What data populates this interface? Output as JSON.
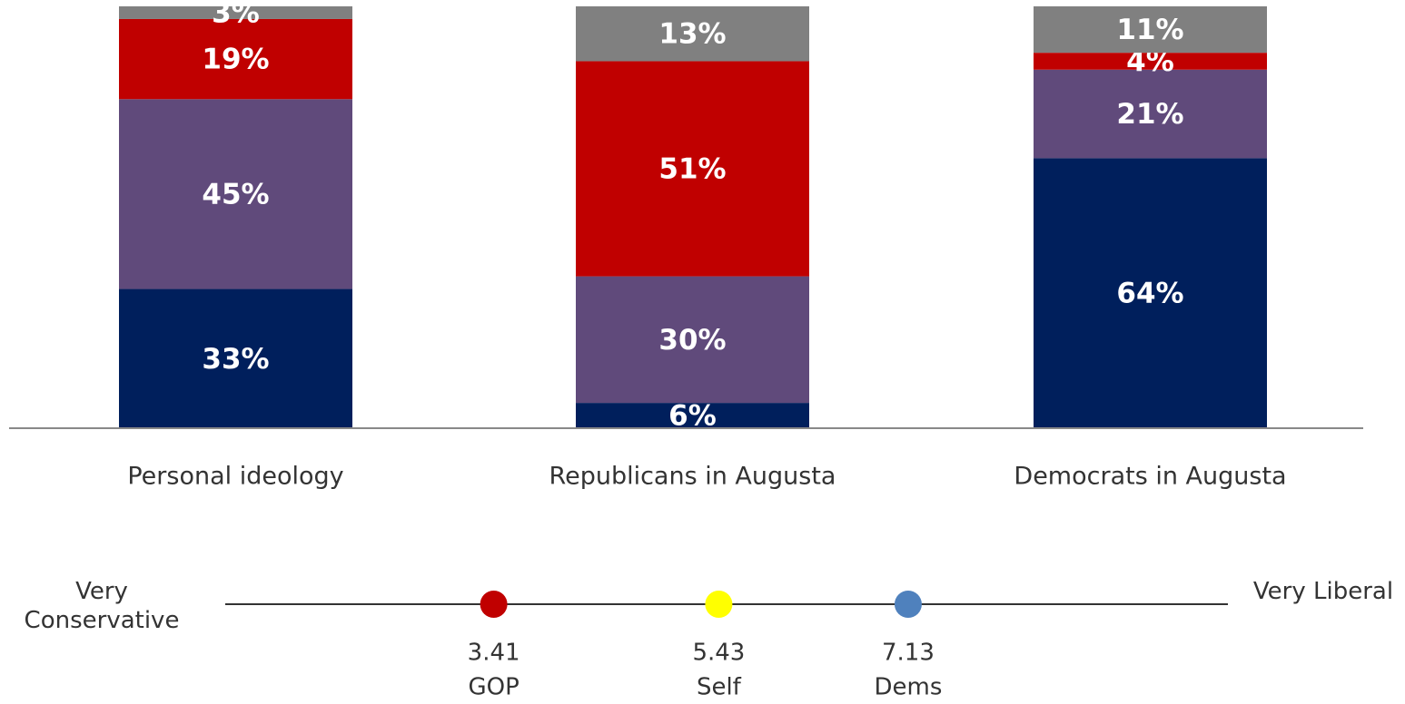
{
  "chart_data": [
    {
      "type": "stacked_bar",
      "categories": [
        "Personal ideology",
        "Republicans in Augusta",
        "Democrats in Augusta"
      ],
      "series": [
        {
          "color": "#001f5c",
          "values": [
            33,
            6,
            64
          ],
          "value_labels": [
            "33%",
            "6%",
            "64%"
          ]
        },
        {
          "color": "#604a7b",
          "values": [
            45,
            30,
            21
          ],
          "value_labels": [
            "45%",
            "30%",
            "21%"
          ]
        },
        {
          "color": "#c00000",
          "values": [
            19,
            51,
            4
          ],
          "value_labels": [
            "19%",
            "51%",
            "4%"
          ]
        },
        {
          "color": "#808080",
          "values": [
            3,
            13,
            11
          ],
          "value_labels": [
            "3%",
            "13%",
            "11%"
          ]
        }
      ],
      "ylim": [
        0,
        100
      ]
    },
    {
      "type": "scale",
      "left_label": "Very Conservative",
      "right_label": "Very Liberal",
      "x": [
        3.41,
        5.43,
        7.13
      ],
      "labels": [
        "GOP",
        "Self",
        "Dems"
      ],
      "colors": [
        "#c00000",
        "#ffff00",
        "#4f81bd"
      ],
      "xlim": [
        1,
        10
      ]
    }
  ]
}
